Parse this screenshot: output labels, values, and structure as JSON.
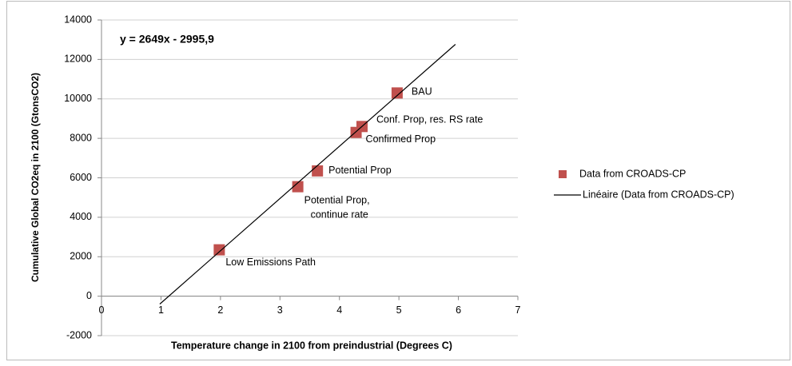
{
  "chart_data": {
    "type": "scatter",
    "equation": "y = 2649x - 2995,9",
    "x_label": "Temperature change  in 2100 from preindustrial (Degrees C)",
    "y_label": "Cumulative Global CO2eq in 2100  (GtonsCO2)",
    "series": [
      {
        "name": "Data from CROADS-CP",
        "color": "#c0504d",
        "x": [
          1.98,
          3.3,
          3.63,
          4.28,
          4.38,
          4.97
        ],
        "values": [
          2350,
          5550,
          6350,
          8300,
          8600,
          10300
        ],
        "labels": [
          "Low Emissions  Path",
          "Potential Prop, continue rate",
          "Potential Prop",
          "Confirmed Prop",
          "Conf. Prop, res. RS rate",
          "BAU"
        ]
      },
      {
        "name": "Linéaire (Data from CROADS-CP)",
        "color": "#000000",
        "line": true,
        "x": [
          0.98,
          5.95
        ],
        "values": [
          -400,
          12765
        ]
      }
    ],
    "xlim": [
      0,
      7
    ],
    "xticks": [
      0,
      1,
      2,
      3,
      4,
      5,
      6,
      7
    ],
    "ylim": [
      -2000,
      14000
    ],
    "yticks": [
      -2000,
      0,
      2000,
      4000,
      6000,
      8000,
      10000,
      12000,
      14000
    ],
    "grid": true,
    "legend": "right"
  }
}
